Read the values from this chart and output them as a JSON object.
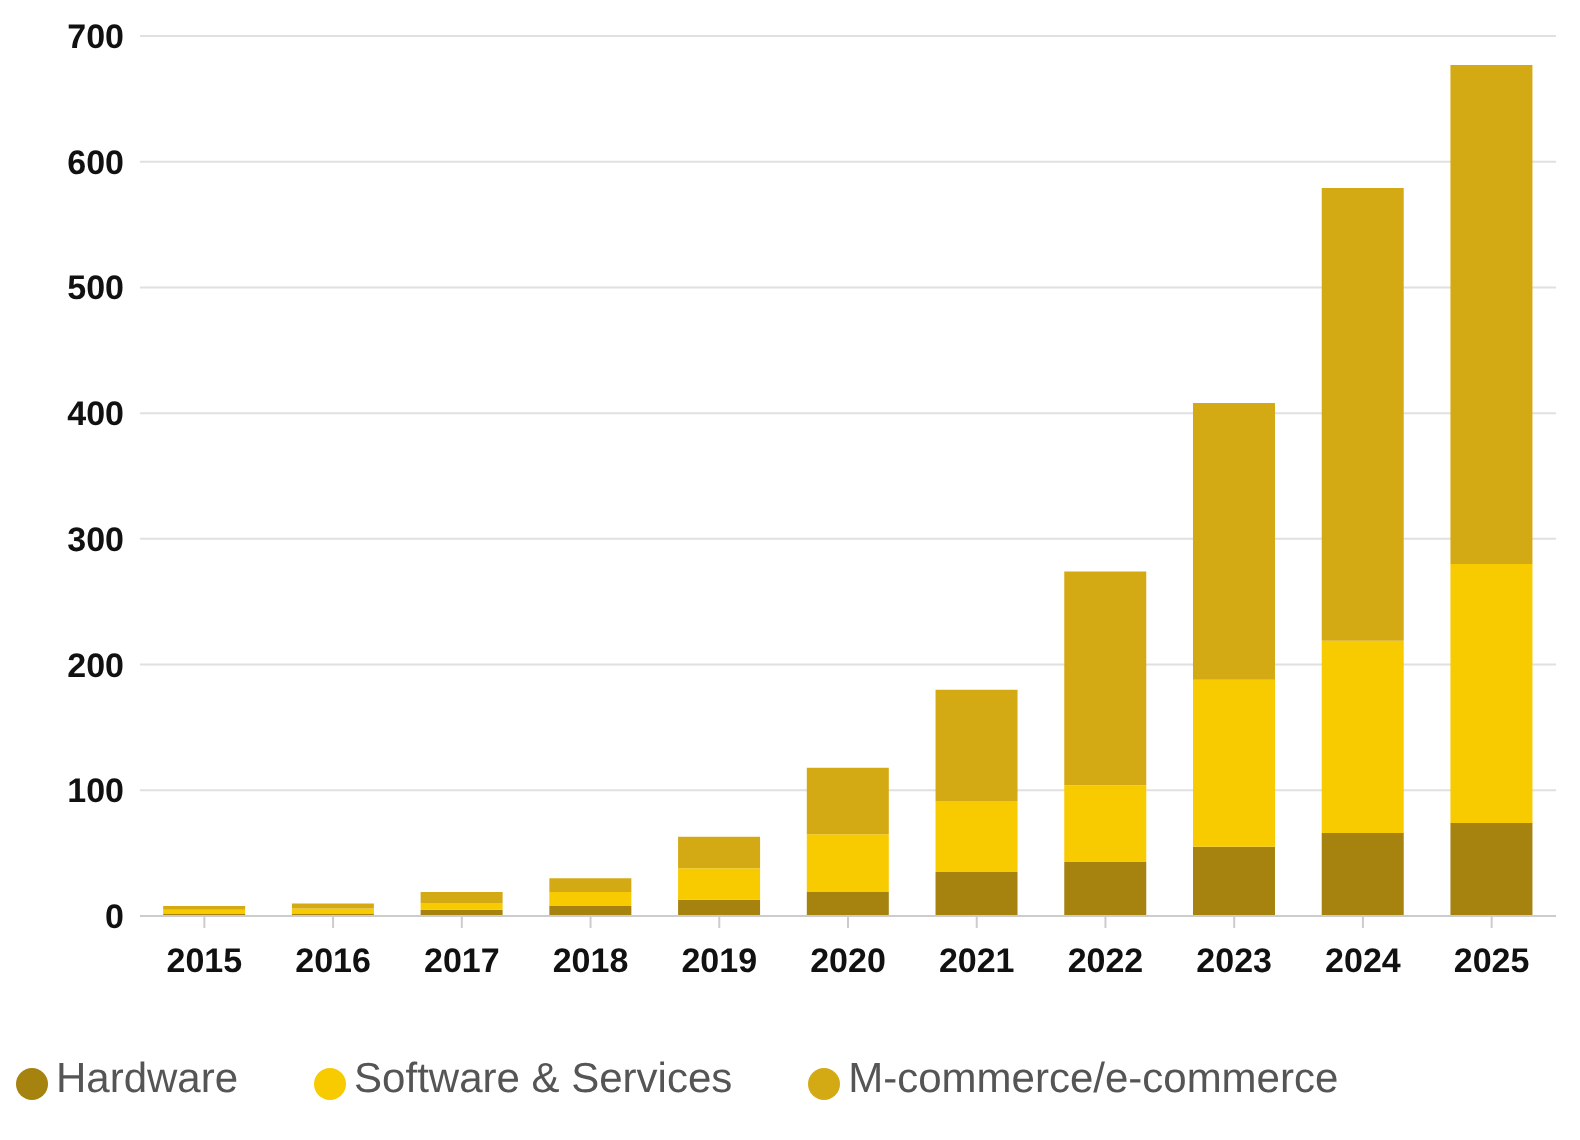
{
  "chart_data": {
    "type": "bar",
    "stacked": true,
    "categories": [
      "2015",
      "2016",
      "2017",
      "2018",
      "2019",
      "2020",
      "2021",
      "2022",
      "2023",
      "2024",
      "2025"
    ],
    "series": [
      {
        "name": "Hardware",
        "color": "#a6820f",
        "values": [
          2,
          2,
          5,
          8,
          13,
          19,
          35,
          43,
          55,
          66,
          74
        ]
      },
      {
        "name": "Software & Services",
        "color": "#f8ca00",
        "values": [
          3,
          4,
          5,
          11,
          25,
          46,
          56,
          61,
          133,
          153,
          206
        ]
      },
      {
        "name": "M-commerce/e-commerce",
        "color": "#d4aa14",
        "values": [
          3,
          4,
          9,
          11,
          25,
          53,
          89,
          170,
          220,
          360,
          397
        ]
      }
    ],
    "ylim": [
      0,
      700
    ],
    "yticks": [
      0,
      100,
      200,
      300,
      400,
      500,
      600,
      700
    ],
    "grid": "y",
    "legend": "bottom"
  }
}
